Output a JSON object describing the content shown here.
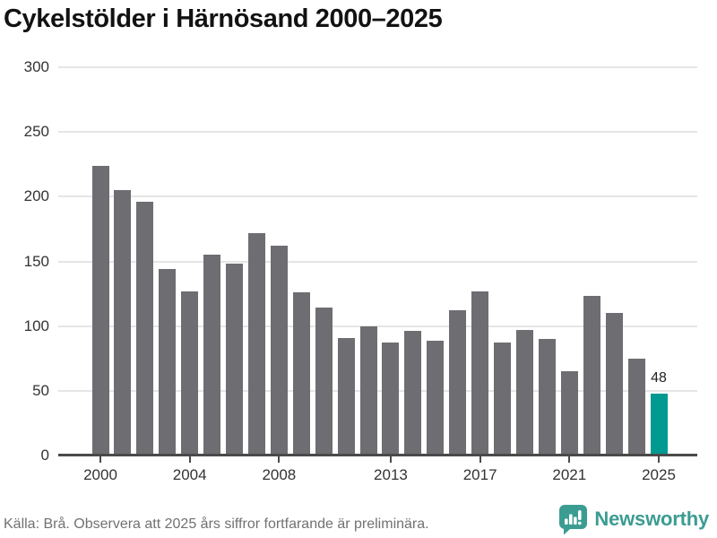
{
  "chart_data": {
    "type": "bar",
    "title": "Cykelstölder i Härnösand 2000–2025",
    "categories": [
      2000,
      2001,
      2002,
      2003,
      2004,
      2005,
      2006,
      2007,
      2008,
      2009,
      2010,
      2011,
      2012,
      2013,
      2014,
      2015,
      2016,
      2017,
      2018,
      2019,
      2020,
      2021,
      2022,
      2023,
      2024,
      2025
    ],
    "values": [
      224,
      205,
      196,
      144,
      127,
      155,
      148,
      172,
      162,
      126,
      114,
      91,
      100,
      87,
      96,
      89,
      112,
      127,
      87,
      97,
      90,
      65,
      123,
      110,
      75,
      48
    ],
    "ylim": [
      0,
      300
    ],
    "yticks": [
      0,
      50,
      100,
      150,
      200,
      250,
      300
    ],
    "xticks": [
      2000,
      2004,
      2008,
      2013,
      2017,
      2021,
      2025
    ],
    "grid": "horizontal",
    "bar_color": "#6e6d72",
    "highlight_index": 25,
    "highlight_color": "#009a92",
    "annotation": {
      "index": 25,
      "text": "48"
    }
  },
  "footer": {
    "source_text": "Källa: Brå. Observera att 2025 års siffror fortfarande är preliminära."
  },
  "logo": {
    "text": "Newsworthy",
    "color": "#3b9c92",
    "icon": "newsworthy-speech-bubble-bar-chart-icon"
  }
}
